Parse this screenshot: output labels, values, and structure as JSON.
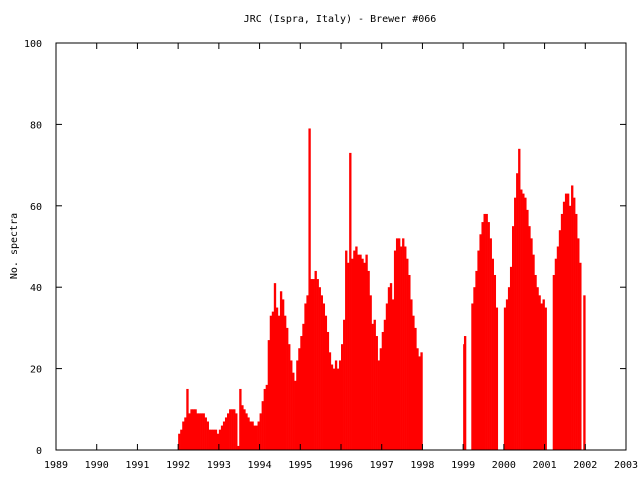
{
  "chart_data": {
    "type": "bar",
    "title": "JRC (Ispra, Italy) - Brewer #066",
    "xlabel": "",
    "ylabel": "No. spectra",
    "xlim": [
      1989,
      2003
    ],
    "ylim": [
      0,
      100
    ],
    "x_ticks": [
      "1989",
      "1990",
      "1991",
      "1992",
      "1993",
      "1994",
      "1995",
      "1996",
      "1997",
      "1998",
      "1999",
      "2000",
      "2001",
      "2002",
      "2003"
    ],
    "y_ticks": [
      "0",
      "20",
      "40",
      "60",
      "80",
      "100"
    ],
    "bar_color": "#ff0000",
    "grid": false,
    "x": [
      1992.0,
      1992.05,
      1992.1,
      1992.15,
      1992.2,
      1992.25,
      1992.3,
      1992.35,
      1992.4,
      1992.45,
      1992.5,
      1992.55,
      1992.6,
      1992.65,
      1992.7,
      1992.75,
      1992.8,
      1992.85,
      1992.9,
      1992.95,
      1993.0,
      1993.05,
      1993.1,
      1993.15,
      1993.2,
      1993.25,
      1993.3,
      1993.35,
      1993.4,
      1993.45,
      1993.5,
      1993.55,
      1993.6,
      1993.65,
      1993.7,
      1993.75,
      1993.8,
      1993.85,
      1993.9,
      1993.95,
      1994.0,
      1994.05,
      1994.1,
      1994.15,
      1994.2,
      1994.25,
      1994.3,
      1994.35,
      1994.4,
      1994.45,
      1994.5,
      1994.55,
      1994.6,
      1994.65,
      1994.7,
      1994.75,
      1994.8,
      1994.85,
      1994.9,
      1994.95,
      1995.0,
      1995.05,
      1995.1,
      1995.15,
      1995.2,
      1995.25,
      1995.3,
      1995.35,
      1995.4,
      1995.45,
      1995.5,
      1995.55,
      1995.6,
      1995.65,
      1995.7,
      1995.75,
      1995.8,
      1995.85,
      1995.9,
      1995.95,
      1996.0,
      1996.05,
      1996.1,
      1996.15,
      1996.2,
      1996.25,
      1996.3,
      1996.35,
      1996.4,
      1996.45,
      1996.5,
      1996.55,
      1996.6,
      1996.65,
      1996.7,
      1996.75,
      1996.8,
      1996.85,
      1996.9,
      1996.95,
      1997.0,
      1997.05,
      1997.1,
      1997.15,
      1997.2,
      1997.25,
      1997.3,
      1997.35,
      1997.4,
      1997.45,
      1997.5,
      1997.55,
      1997.6,
      1997.65,
      1997.7,
      1997.75,
      1997.8,
      1997.85,
      1997.9,
      1997.95,
      1999.0,
      1999.02,
      1999.2,
      1999.25,
      1999.3,
      1999.35,
      1999.4,
      1999.45,
      1999.5,
      1999.55,
      1999.6,
      1999.65,
      1999.7,
      1999.75,
      1999.8,
      2000.0,
      2000.05,
      2000.1,
      2000.15,
      2000.2,
      2000.25,
      2000.3,
      2000.35,
      2000.4,
      2000.45,
      2000.5,
      2000.55,
      2000.6,
      2000.65,
      2000.7,
      2000.75,
      2000.8,
      2000.85,
      2000.9,
      2000.95,
      2001.0,
      2001.2,
      2001.25,
      2001.3,
      2001.35,
      2001.4,
      2001.45,
      2001.5,
      2001.55,
      2001.6,
      2001.65,
      2001.7,
      2001.75,
      2001.8,
      2001.85,
      2001.95
    ],
    "values": [
      4,
      5,
      7,
      8,
      15,
      9,
      10,
      10,
      10,
      9,
      9,
      9,
      9,
      8,
      7,
      5,
      5,
      5,
      5,
      4,
      5,
      6,
      7,
      8,
      9,
      10,
      10,
      10,
      9,
      1,
      15,
      11,
      10,
      9,
      8,
      7,
      7,
      6,
      6,
      7,
      9,
      12,
      15,
      16,
      27,
      33,
      34,
      41,
      35,
      33,
      39,
      37,
      33,
      30,
      26,
      22,
      19,
      17,
      22,
      25,
      28,
      31,
      36,
      38,
      79,
      42,
      42,
      44,
      42,
      40,
      38,
      36,
      33,
      29,
      24,
      21,
      20,
      22,
      20,
      22,
      26,
      32,
      49,
      46,
      73,
      47,
      49,
      50,
      48,
      48,
      47,
      46,
      48,
      44,
      38,
      31,
      32,
      28,
      22,
      25,
      29,
      32,
      36,
      40,
      41,
      37,
      49,
      52,
      52,
      50,
      52,
      50,
      47,
      43,
      37,
      33,
      30,
      25,
      23,
      24,
      26,
      28,
      36,
      40,
      44,
      49,
      53,
      56,
      58,
      58,
      56,
      52,
      47,
      43,
      35,
      35,
      37,
      40,
      45,
      55,
      62,
      68,
      74,
      64,
      63,
      62,
      59,
      55,
      52,
      48,
      43,
      40,
      38,
      36,
      37,
      35,
      43,
      47,
      50,
      54,
      58,
      61,
      63,
      63,
      60,
      65,
      62,
      58,
      52,
      46,
      38
    ]
  }
}
